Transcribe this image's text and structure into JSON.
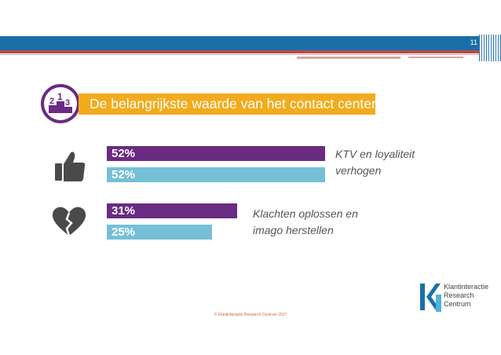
{
  "header": {
    "page_number": "11"
  },
  "title": {
    "text": "De belangrijkste waarde van het contact center",
    "badge_digits": [
      "2",
      "1",
      "3"
    ]
  },
  "colors": {
    "primary_bar": "#6a2b82",
    "secondary_bar": "#75bfd7",
    "title_bar": "#f2ab1c",
    "icon": "#4a4a4a"
  },
  "chart_data": {
    "type": "bar",
    "orientation": "horizontal",
    "categories": [
      "KTV en loyaliteit verhogen",
      "Klachten oplossen en imago herstellen"
    ],
    "series": [
      {
        "values": [
          52,
          31
        ],
        "labels": [
          "52%",
          "31%"
        ],
        "color": "#6a2b82"
      },
      {
        "values": [
          52,
          25
        ],
        "labels": [
          "52%",
          "25%"
        ],
        "color": "#75bfd7"
      }
    ],
    "xlim": [
      0,
      100
    ],
    "unit": "%",
    "group_icons": [
      "thumbs-up-icon",
      "broken-heart-icon"
    ]
  },
  "groups": [
    {
      "label_lines": [
        "KTV en loyaliteit",
        "verhogen"
      ]
    },
    {
      "label_lines": [
        "Klachten oplossen en",
        "imago herstellen"
      ]
    }
  ],
  "footer": {
    "copyright": "© Klantinteractie Research Centrum 2017"
  },
  "logo": {
    "lines": [
      "Klantinteractie",
      "Research",
      "Centrum"
    ]
  }
}
